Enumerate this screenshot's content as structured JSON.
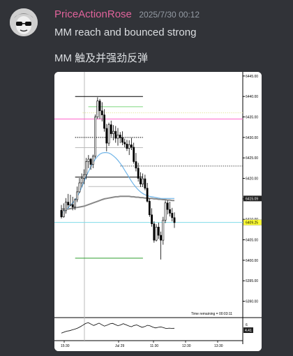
{
  "message": {
    "username": "PriceActionRose",
    "timestamp": "2025/7/30 00:12",
    "lines": [
      "MM reach and bounced strong",
      "MM 触及并强劲反弹"
    ]
  },
  "colors": {
    "background": "#313338",
    "username": "#e0639b",
    "text": "#dbdee1",
    "timestamp": "#949ba4"
  },
  "chart_data": {
    "type": "candlestick",
    "y_ticks": [
      "6445.00",
      "6440.00",
      "6435.00",
      "6430.00",
      "6425.00",
      "6420.00",
      "6415.00",
      "6410.00",
      "6405.00",
      "6400.00",
      "6395.00",
      "6390.00"
    ],
    "x_ticks": [
      "15:30",
      "Jul 29",
      "11:30",
      "12:30",
      "13:30"
    ],
    "ylim": [
      6386,
      6446
    ],
    "price_labels": {
      "last": "6415.09",
      "cyan_line": "6409.25"
    },
    "time_remaining": "Time remaining = 00:03:11",
    "oscillator_labels": [
      "6",
      "4.41"
    ],
    "candles": [
      [
        6412.2,
        6413.5,
        6410.2,
        6410.6
      ],
      [
        6410.6,
        6413.9,
        6410.4,
        6412.1
      ],
      [
        6412.1,
        6415.2,
        6411.4,
        6414.2
      ],
      [
        6414.2,
        6416.2,
        6412.8,
        6413.5
      ],
      [
        6413.5,
        6416.0,
        6413.2,
        6413.6
      ],
      [
        6413.6,
        6415.5,
        6412.2,
        6413.0
      ],
      [
        6413.0,
        6415.1,
        6412.3,
        6414.8
      ],
      [
        6414.8,
        6418.0,
        6414.2,
        6416.7
      ],
      [
        6416.7,
        6420.1,
        6416.4,
        6418.9
      ],
      [
        6418.9,
        6421.2,
        6417.8,
        6420.0
      ],
      [
        6420.0,
        6422.2,
        6418.6,
        6420.9
      ],
      [
        6420.9,
        6425.0,
        6419.8,
        6424.1
      ],
      [
        6424.1,
        6425.7,
        6422.5,
        6424.7
      ],
      [
        6424.7,
        6425.0,
        6422.1,
        6423.4
      ],
      [
        6423.4,
        6425.8,
        6422.5,
        6425.4
      ],
      [
        6425.4,
        6435.6,
        6424.9,
        6435.0
      ],
      [
        6435.0,
        6439.8,
        6434.5,
        6438.9
      ],
      [
        6438.9,
        6439.4,
        6434.5,
        6436.5
      ],
      [
        6436.5,
        6438.6,
        6433.9,
        6435.5
      ],
      [
        6435.5,
        6436.9,
        6431.4,
        6432.2
      ],
      [
        6432.2,
        6433.3,
        6426.6,
        6428.6
      ],
      [
        6428.6,
        6433.6,
        6427.9,
        6433.1
      ],
      [
        6433.1,
        6434.1,
        6430.2,
        6430.9
      ],
      [
        6430.9,
        6433.0,
        6429.3,
        6431.5
      ],
      [
        6431.5,
        6432.8,
        6428.7,
        6429.8
      ],
      [
        6429.8,
        6432.3,
        6428.0,
        6430.6
      ],
      [
        6430.6,
        6431.3,
        6428.6,
        6429.9
      ],
      [
        6429.9,
        6431.5,
        6428.1,
        6428.8
      ],
      [
        6428.8,
        6429.7,
        6427.6,
        6428.4
      ],
      [
        6428.4,
        6429.4,
        6426.7,
        6427.3
      ],
      [
        6427.3,
        6429.3,
        6425.7,
        6428.2
      ],
      [
        6428.2,
        6429.9,
        6426.9,
        6427.6
      ],
      [
        6427.6,
        6428.7,
        6423.6,
        6424.1
      ],
      [
        6424.1,
        6426.2,
        6421.7,
        6422.5
      ],
      [
        6422.5,
        6423.8,
        6419.2,
        6420.0
      ],
      [
        6420.0,
        6421.5,
        6417.9,
        6418.6
      ],
      [
        6418.6,
        6421.2,
        6417.9,
        6419.9
      ],
      [
        6419.9,
        6420.9,
        6417.1,
        6417.6
      ],
      [
        6417.6,
        6418.9,
        6414.1,
        6414.4
      ],
      [
        6414.4,
        6415.1,
        6410.6,
        6411.1
      ],
      [
        6411.1,
        6412.7,
        6408.2,
        6408.9
      ],
      [
        6408.9,
        6409.5,
        6404.3,
        6404.9
      ],
      [
        6404.9,
        6408.8,
        6404.6,
        6408.1
      ],
      [
        6408.1,
        6409.2,
        6405.2,
        6406.1
      ],
      [
        6406.1,
        6407.0,
        6400.2,
        6404.9
      ],
      [
        6404.9,
        6410.6,
        6403.8,
        6409.8
      ],
      [
        6409.8,
        6414.6,
        6409.1,
        6414.0
      ],
      [
        6414.0,
        6414.6,
        6411.2,
        6412.4
      ],
      [
        6412.4,
        6414.3,
        6410.7,
        6411.5
      ],
      [
        6411.5,
        6412.8,
        6409.5,
        6410.4
      ],
      [
        6410.4,
        6411.7,
        6407.9,
        6409.2
      ]
    ],
    "ema": [
      6411.4,
      6411.9,
      6412.4,
      6412.8,
      6413.4,
      6414.0,
      6414.6,
      6415.5,
      6416.6,
      6417.9,
      6419.2,
      6420.5,
      6421.7,
      6422.8,
      6423.8,
      6424.7,
      6425.4,
      6425.9,
      6426.2,
      6426.3,
      6426.3,
      6426.2,
      6425.9,
      6425.5,
      6425.0,
      6424.4,
      6423.7,
      6422.9,
      6422.0,
      6421.1,
      6420.2,
      6419.3,
      6418.5,
      6417.8,
      6417.2,
      6416.7,
      6416.3,
      6416.0,
      6415.8,
      6415.6,
      6415.5,
      6415.4,
      6415.3,
      6415.2,
      6415.1,
      6415.1,
      6415.1,
      6415.1,
      6415.1,
      6415.1,
      6415.1
    ],
    "sma": [
      6412.5,
      6412.5,
      6412.5,
      6412.5,
      6412.6,
      6412.7,
      6412.8,
      6412.9,
      6413.0,
      6413.1,
      6413.2,
      6413.4,
      6413.6,
      6413.8,
      6414.0,
      6414.2,
      6414.4,
      6414.6,
      6414.8,
      6415.0,
      6415.1,
      6415.2,
      6415.3,
      6415.4,
      6415.5,
      6415.5,
      6415.6,
      6415.6,
      6415.6,
      6415.6,
      6415.6,
      6415.5,
      6415.5,
      6415.4,
      6415.4,
      6415.3,
      6415.3,
      6415.2,
      6415.2,
      6415.1,
      6415.1,
      6415.0,
      6415.0,
      6414.9,
      6414.9,
      6414.8,
      6414.8,
      6414.7,
      6414.7,
      6414.6,
      6414.6
    ],
    "levels": [
      {
        "price": 6440.0,
        "color": "#000000",
        "style": "solid",
        "from": 0.11,
        "to": 0.47
      },
      {
        "price": 6436.0,
        "color": "#e8e8a8",
        "style": "dotted",
        "from": 0.15,
        "to": 1.0
      },
      {
        "price": 6434.5,
        "color": "#ff66cc",
        "style": "solid",
        "from": 0.0,
        "to": 1.0
      },
      {
        "price": 6437.5,
        "color": "#7dd87d",
        "style": "solid",
        "from": 0.18,
        "to": 0.47
      },
      {
        "price": 6430.0,
        "color": "#000000",
        "style": "dotted",
        "from": 0.11,
        "to": 0.47
      },
      {
        "price": 6427.5,
        "color": "#bbbbbb",
        "style": "solid",
        "from": 0.11,
        "to": 0.47
      },
      {
        "price": 6423.0,
        "color": "#555555",
        "style": "dotted",
        "from": 0.35,
        "to": 1.0
      },
      {
        "price": 6420.3,
        "color": "#000000",
        "style": "solid",
        "from": 0.11,
        "to": 0.47
      },
      {
        "price": 6418.0,
        "color": "#bbbbbb",
        "style": "solid",
        "from": 0.18,
        "to": 0.47
      },
      {
        "price": 6409.25,
        "color": "#7fdbe8",
        "style": "solid",
        "from": 0.0,
        "to": 1.0
      },
      {
        "price": 6400.5,
        "color": "#2e9e2e",
        "style": "solid",
        "from": 0.11,
        "to": 0.47
      }
    ],
    "oscillator": [
      2,
      2.5,
      3,
      3.2,
      3.6,
      4,
      4.5,
      5.2,
      6,
      6.8,
      7.2,
      6.5,
      5.8,
      6.4,
      7,
      6.2,
      5.5,
      6,
      6.6,
      6.9,
      6.3,
      5.7,
      6.1,
      6.7,
      6.2,
      5.6,
      5.2,
      5.8,
      6.1,
      5.5,
      4.9,
      5.3,
      5.9,
      5.6,
      5.0,
      4.6,
      4.9,
      5.1,
      4.7,
      4.3,
      4.5,
      4.4,
      4.41
    ]
  }
}
